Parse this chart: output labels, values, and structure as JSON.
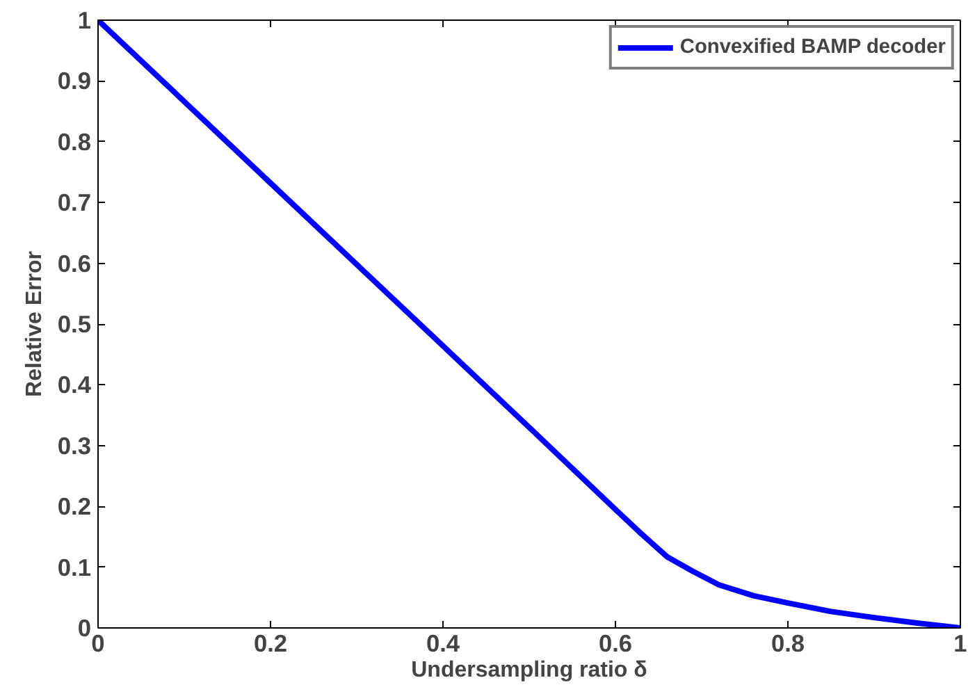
{
  "chart_data": {
    "type": "line",
    "xlabel": "Undersampling ratio δ",
    "ylabel": "Relative Error",
    "xlim": [
      0,
      1
    ],
    "ylim": [
      0,
      1
    ],
    "xticks": [
      0,
      0.2,
      0.4,
      0.6,
      0.8,
      1
    ],
    "yticks": [
      0,
      0.1,
      0.2,
      0.3,
      0.4,
      0.5,
      0.6,
      0.7,
      0.8,
      0.9,
      1
    ],
    "grid": false,
    "legend": "top right",
    "line_style": "solid",
    "marker": "none",
    "series": [
      {
        "name": "Convexified BAMP decoder",
        "color": "#0000ff",
        "x": [
          0,
          0.1,
          0.2,
          0.3,
          0.4,
          0.5,
          0.6,
          0.63,
          0.66,
          0.69,
          0.72,
          0.76,
          0.8,
          0.85,
          0.9,
          0.95,
          1
        ],
        "values": [
          1,
          0.866,
          0.732,
          0.598,
          0.464,
          0.33,
          0.195,
          0.155,
          0.117,
          0.093,
          0.071,
          0.053,
          0.041,
          0.027,
          0.017,
          0.008,
          0
        ]
      }
    ]
  }
}
